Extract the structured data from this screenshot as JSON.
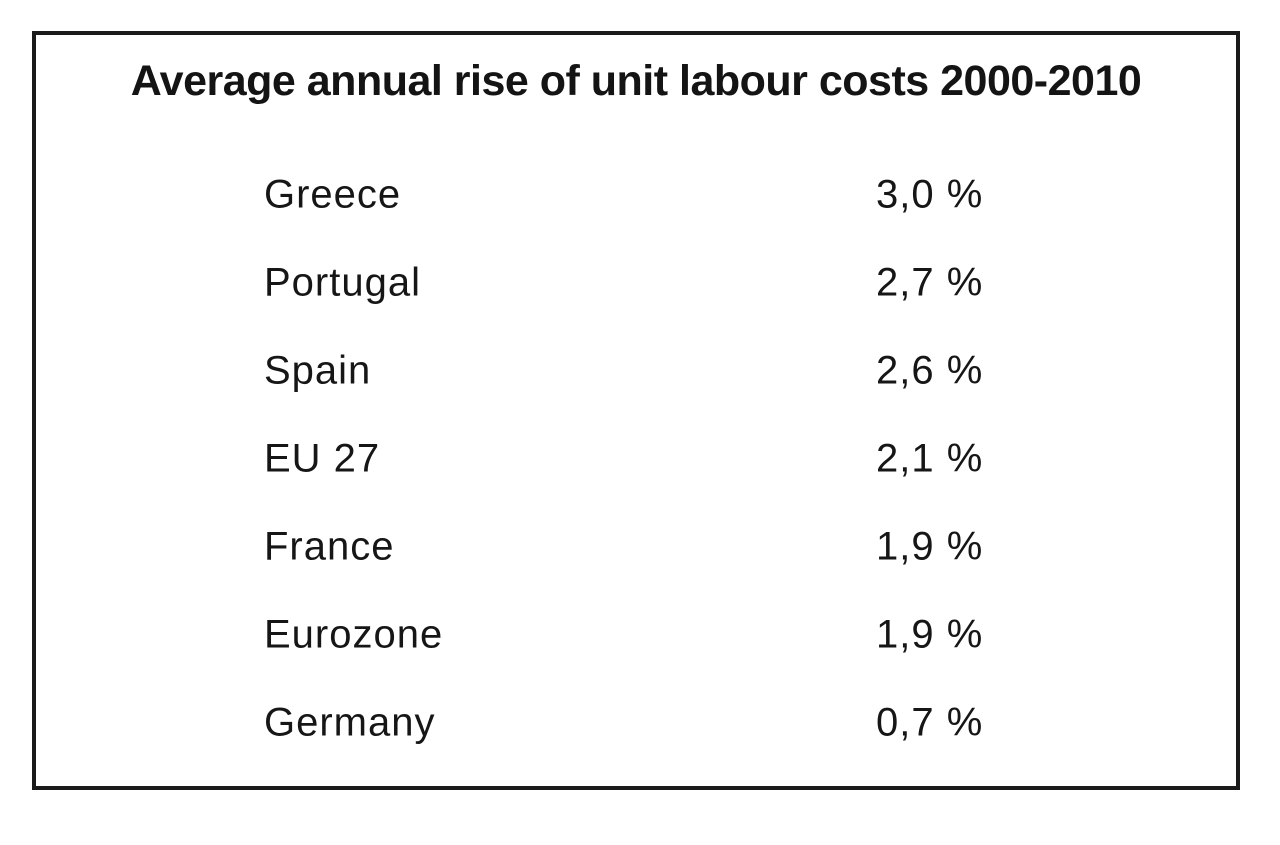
{
  "page": {
    "title": "Average annual rise of unit labour costs 2000-2010"
  },
  "table": {
    "rows": [
      {
        "label": "Greece",
        "value": "3,0 %"
      },
      {
        "label": "Portugal",
        "value": "2,7 %"
      },
      {
        "label": "Spain",
        "value": "2,6 %"
      },
      {
        "label": "EU 27",
        "value": "2,1 %"
      },
      {
        "label": "France",
        "value": "1,9 %"
      },
      {
        "label": "Eurozone",
        "value": "1,9 %"
      },
      {
        "label": "Germany",
        "value": "0,7 %"
      }
    ]
  },
  "chart_data": {
    "type": "table",
    "title": "Average annual rise of unit labour costs 2000-2010",
    "categories": [
      "Greece",
      "Portugal",
      "Spain",
      "EU 27",
      "France",
      "Eurozone",
      "Germany"
    ],
    "values": [
      3.0,
      2.7,
      2.6,
      2.1,
      1.9,
      1.9,
      0.7
    ],
    "unit": "%",
    "value_format": "comma-decimal, one decimal place, space before %",
    "layout": "single bordered panel, bold centered title, two-column list (label left, value right)"
  },
  "colors": {
    "background": "#ffffff",
    "border": "#1b1b1b",
    "text": "#141414"
  }
}
